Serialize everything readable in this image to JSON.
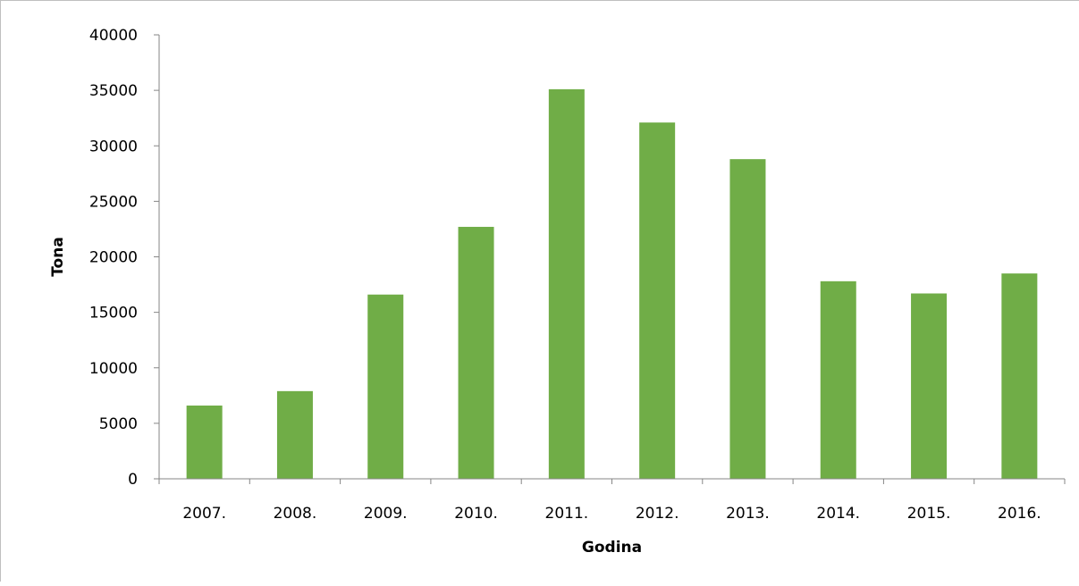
{
  "chart_data": {
    "type": "bar",
    "title": "",
    "xlabel": "Godina",
    "ylabel": "Tona",
    "categories": [
      "2007.",
      "2008.",
      "2009.",
      "2010.",
      "2011.",
      "2012.",
      "2013.",
      "2014.",
      "2015.",
      "2016."
    ],
    "series": [
      {
        "values": [
          6600,
          7900,
          16600,
          22700,
          35100,
          32100,
          28800,
          17800,
          16700,
          18500
        ],
        "color": "#70ad47"
      }
    ],
    "ylim": [
      0,
      40000
    ],
    "yticks": [
      "0",
      "5000",
      "10000",
      "15000",
      "20000",
      "25000",
      "30000",
      "35000",
      "40000"
    ],
    "grid": false,
    "legend": "none"
  }
}
